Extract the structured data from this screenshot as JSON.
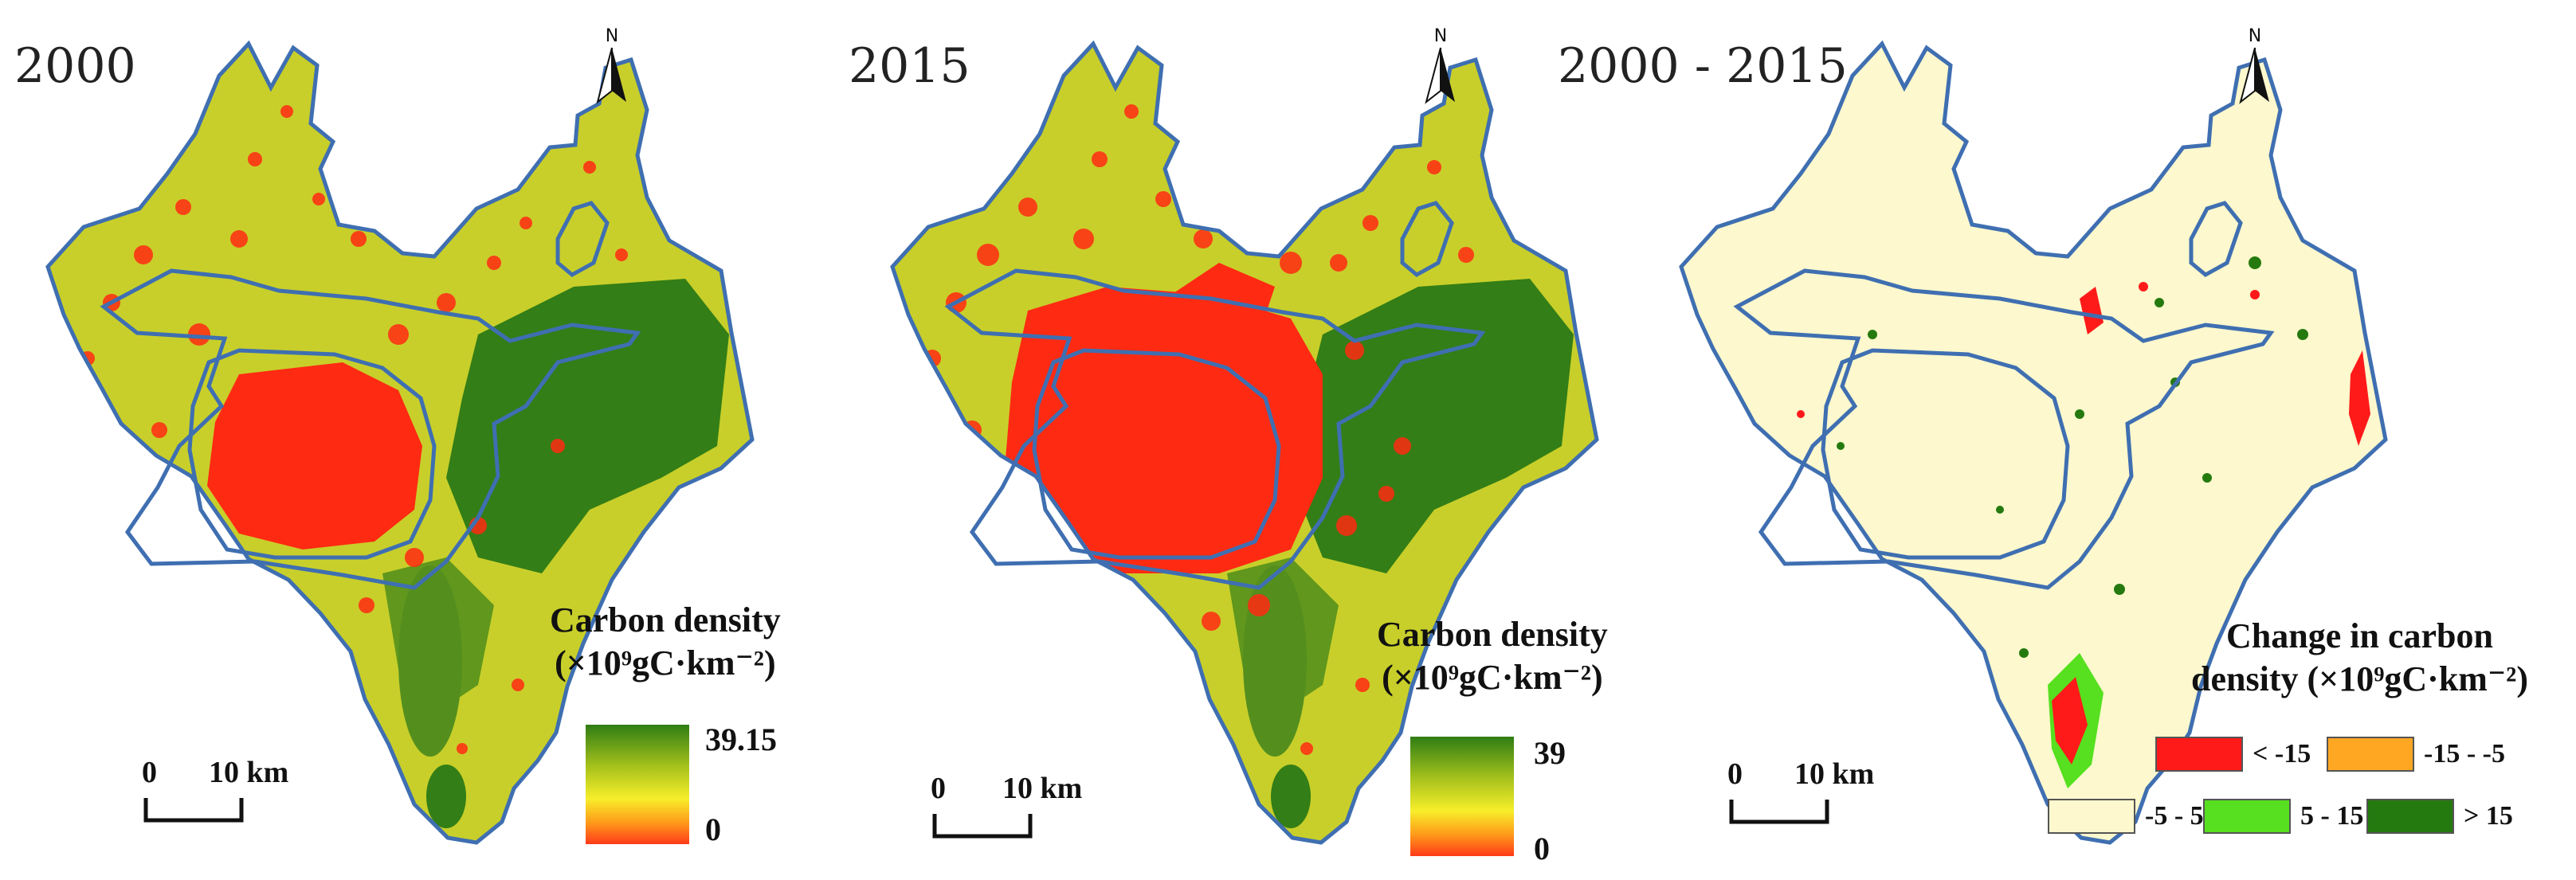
{
  "panels": [
    {
      "year": "2000",
      "legend": {
        "title_line1": "Carbon density",
        "title_line2": "(×10⁹gC·km⁻²)",
        "max": "39.15",
        "min": "0"
      },
      "scale": {
        "zero": "0",
        "dist": "10 km"
      },
      "north": "N"
    },
    {
      "year": "2015",
      "legend": {
        "title_line1": "Carbon density",
        "title_line2": "(×10⁹gC·km⁻²)",
        "max": "39",
        "min": "0"
      },
      "scale": {
        "zero": "0",
        "dist": "10 km"
      },
      "north": "N"
    },
    {
      "year": "2000 - 2015",
      "legend": {
        "title_line1": "Change in carbon",
        "title_line2": "density (×10⁹gC·km⁻²)",
        "categories": [
          {
            "label": "< -15",
            "color": "#ff1a1a"
          },
          {
            "label": "-15 - -5",
            "color": "#ffa722"
          },
          {
            "label": "-5 - 5",
            "color": "#fdf8cd"
          },
          {
            "label": "5 - 15",
            "color": "#56e01f"
          },
          {
            "label": "> 15",
            "color": "#257a0f"
          }
        ]
      },
      "scale": {
        "zero": "0",
        "dist": "10 km"
      },
      "north": "N"
    }
  ],
  "colors": {
    "base_fill": "#c8cf2a",
    "urban": "#ff2a12",
    "forest": "#2c7a16",
    "boundary": "#3f6fb1",
    "change_base": "#fdf8cd"
  }
}
